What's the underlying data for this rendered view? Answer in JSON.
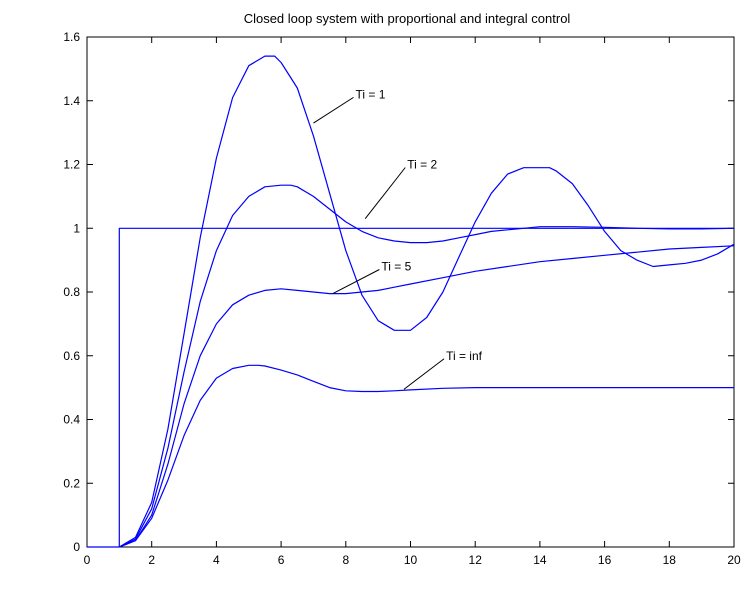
{
  "chart_data": {
    "type": "line",
    "title": "Closed loop system with proportional and integral control",
    "xlabel": "",
    "ylabel": "",
    "xlim": [
      0,
      20
    ],
    "ylim": [
      0,
      1.6
    ],
    "x_ticks": [
      0,
      2,
      4,
      6,
      8,
      10,
      12,
      14,
      16,
      18,
      20
    ],
    "y_ticks": [
      0,
      0.2,
      0.4,
      0.6,
      0.8,
      1,
      1.2,
      1.4,
      1.6
    ],
    "x_tick_labels": [
      "0",
      "2",
      "4",
      "6",
      "8",
      "10",
      "12",
      "14",
      "16",
      "18",
      "20"
    ],
    "y_tick_labels": [
      "0",
      "0.2",
      "0.4",
      "0.6",
      "0.8",
      "1",
      "1.2",
      "1.4",
      "1.6"
    ],
    "grid": false,
    "line_color": "#0000ff",
    "series": [
      {
        "x": [
          0,
          1,
          1,
          20
        ],
        "values": [
          0,
          0,
          1,
          1
        ]
      },
      {
        "x": [
          1,
          1.5,
          2,
          2.5,
          3,
          3.5,
          4,
          4.5,
          5,
          5.5,
          5.8,
          6,
          6.5,
          7,
          7.5,
          8,
          8.5,
          9,
          9.5,
          10,
          10.5,
          11,
          11.5,
          12,
          12.5,
          13,
          13.5,
          14,
          14.3,
          14.5,
          15,
          15.5,
          16,
          16.5,
          17,
          17.5,
          18,
          18.5,
          19,
          19.5,
          20
        ],
        "values": [
          0,
          0.03,
          0.14,
          0.37,
          0.67,
          0.97,
          1.22,
          1.41,
          1.51,
          1.54,
          1.54,
          1.52,
          1.44,
          1.29,
          1.11,
          0.93,
          0.79,
          0.71,
          0.68,
          0.68,
          0.72,
          0.8,
          0.91,
          1.02,
          1.11,
          1.17,
          1.19,
          1.19,
          1.19,
          1.18,
          1.14,
          1.07,
          0.99,
          0.93,
          0.9,
          0.88,
          0.885,
          0.89,
          0.9,
          0.92,
          0.95
        ],
        "label": "Ti = 1"
      },
      {
        "x": [
          1,
          1.5,
          2,
          2.5,
          3,
          3.5,
          4,
          4.5,
          5,
          5.5,
          6,
          6.3,
          6.5,
          7,
          7.5,
          8,
          8.5,
          9,
          9.5,
          10,
          10.5,
          11,
          11.5,
          12,
          12.5,
          13,
          13.5,
          14,
          15,
          16,
          17,
          18,
          19,
          20
        ],
        "values": [
          0,
          0.025,
          0.12,
          0.31,
          0.55,
          0.77,
          0.93,
          1.04,
          1.1,
          1.13,
          1.135,
          1.135,
          1.13,
          1.1,
          1.06,
          1.02,
          0.99,
          0.97,
          0.96,
          0.955,
          0.955,
          0.96,
          0.97,
          0.98,
          0.99,
          0.995,
          1.0,
          1.005,
          1.005,
          1.003,
          1.0,
          0.998,
          0.998,
          1.0
        ]
      },
      {
        "x": [
          1,
          1.5,
          2,
          2.5,
          3,
          3.5,
          4,
          4.5,
          5,
          5.5,
          6,
          6.5,
          7,
          7.5,
          8,
          8.5,
          9,
          9.5,
          10,
          11,
          12,
          13,
          14,
          15,
          16,
          17,
          18,
          19,
          20
        ],
        "values": [
          0,
          0.02,
          0.1,
          0.26,
          0.45,
          0.6,
          0.7,
          0.76,
          0.79,
          0.805,
          0.81,
          0.805,
          0.8,
          0.795,
          0.795,
          0.8,
          0.805,
          0.815,
          0.825,
          0.845,
          0.865,
          0.88,
          0.895,
          0.905,
          0.915,
          0.925,
          0.935,
          0.94,
          0.945
        ]
      },
      {
        "x": [
          1,
          1.5,
          2,
          2.5,
          3,
          3.5,
          4,
          4.5,
          5,
          5.3,
          5.5,
          6,
          6.5,
          7,
          7.5,
          8,
          8.5,
          9,
          9.5,
          10,
          11,
          12,
          13,
          14,
          15,
          16,
          17,
          18,
          19,
          20
        ],
        "values": [
          0,
          0.02,
          0.09,
          0.21,
          0.35,
          0.46,
          0.53,
          0.56,
          0.57,
          0.57,
          0.568,
          0.555,
          0.54,
          0.52,
          0.5,
          0.49,
          0.488,
          0.488,
          0.49,
          0.493,
          0.498,
          0.5,
          0.5,
          0.5,
          0.5,
          0.5,
          0.5,
          0.5,
          0.5,
          0.5
        ]
      }
    ],
    "annotations": [
      {
        "text": "Ti = 1",
        "x": 8.3,
        "y": 1.42,
        "line_to_x": 7.0,
        "line_to_y": 1.33
      },
      {
        "text": "Ti = 2",
        "x": 9.9,
        "y": 1.2,
        "line_to_x": 8.6,
        "line_to_y": 1.03
      },
      {
        "text": "Ti = 5",
        "x": 9.1,
        "y": 0.88,
        "line_to_x": 7.6,
        "line_to_y": 0.795
      },
      {
        "text": "Ti = inf",
        "x": 11.1,
        "y": 0.6,
        "line_to_x": 9.8,
        "line_to_y": 0.495
      }
    ]
  }
}
